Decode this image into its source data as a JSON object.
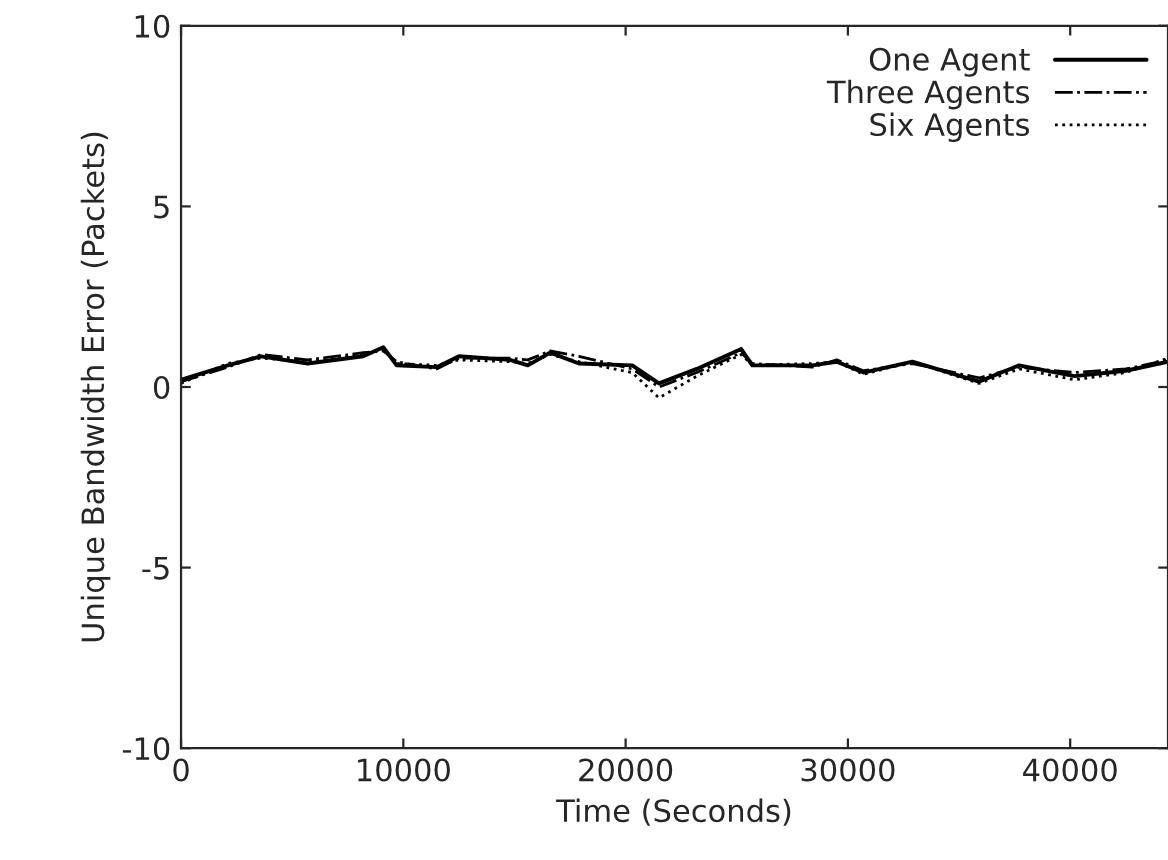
{
  "chart_data": {
    "type": "line",
    "xlabel": "Time (Seconds)",
    "ylabel": "Unique Bandwidth Error (Packets)",
    "xlim": [
      0,
      44400
    ],
    "xticks": [
      0,
      10000,
      20000,
      30000,
      40000
    ],
    "ylim": [
      -10,
      10
    ],
    "yticks": [
      -10,
      -5,
      0,
      5,
      10
    ],
    "grid": false,
    "legend": "top right",
    "x": [
      0,
      2100,
      3600,
      5700,
      8200,
      9100,
      9700,
      11500,
      12500,
      14800,
      15600,
      16600,
      17900,
      20300,
      21500,
      23200,
      25200,
      25700,
      28400,
      29500,
      30700,
      32900,
      35900,
      37700,
      40200,
      42500,
      44400
    ],
    "series": [
      {
        "name": "One Agent",
        "color": "#000000",
        "line_style": "solid",
        "values": [
          0.2,
          0.6,
          0.85,
          0.65,
          0.85,
          1.1,
          0.6,
          0.55,
          0.85,
          0.75,
          0.6,
          0.95,
          0.65,
          0.6,
          0.1,
          0.5,
          1.05,
          0.6,
          0.6,
          0.7,
          0.4,
          0.7,
          0.15,
          0.6,
          0.3,
          0.45,
          0.7
        ]
      },
      {
        "name": "Three Agents",
        "color": "#000000",
        "line_style": "dashdot",
        "values": [
          0.15,
          0.55,
          0.9,
          0.75,
          0.95,
          1.0,
          0.7,
          0.5,
          0.8,
          0.8,
          0.75,
          1.0,
          0.85,
          0.5,
          0.0,
          0.4,
          0.95,
          0.65,
          0.55,
          0.75,
          0.45,
          0.65,
          0.25,
          0.55,
          0.4,
          0.5,
          0.75
        ]
      },
      {
        "name": "Six Agents",
        "color": "#000000",
        "line_style": "dotted",
        "values": [
          0.1,
          0.65,
          0.8,
          0.7,
          0.9,
          1.05,
          0.65,
          0.6,
          0.75,
          0.7,
          0.65,
          0.9,
          0.7,
          0.4,
          -0.3,
          0.3,
          0.9,
          0.6,
          0.65,
          0.7,
          0.35,
          0.7,
          0.1,
          0.5,
          0.2,
          0.4,
          0.8
        ]
      }
    ]
  }
}
